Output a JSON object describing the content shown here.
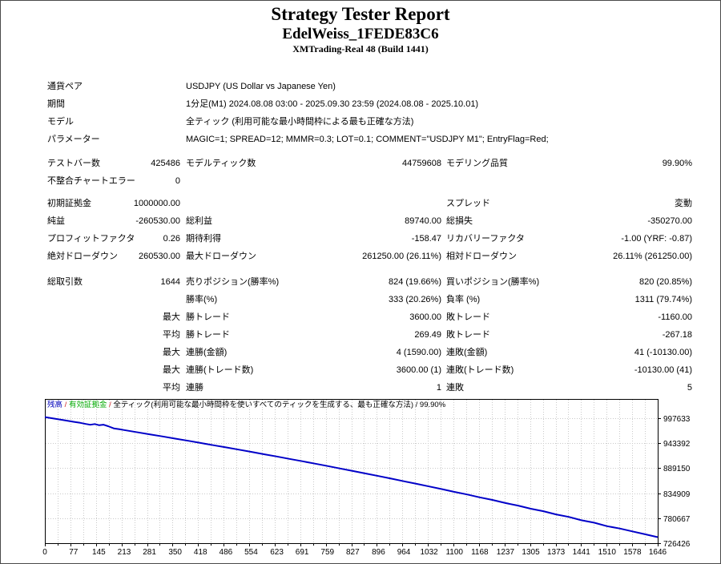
{
  "header": {
    "title": "Strategy Tester Report",
    "ea_name": "EdelWeiss_1FEDE83C6",
    "server": "XMTrading-Real 48 (Build 1441)"
  },
  "report": {
    "sections": [
      {
        "type": "info",
        "rows": [
          [
            "通貨ペア",
            "USDJPY (US Dollar vs Japanese Yen)"
          ],
          [
            "期間",
            "1分足(M1) 2024.08.08 03:00 - 2025.09.30 23:59 (2024.08.08 - 2025.10.01)"
          ],
          [
            "モデル",
            "全ティック (利用可能な最小時間枠による最も正確な方法)"
          ],
          [
            "パラメーター",
            "MAGIC=1; SPREAD=12; MMMR=0.3; LOT=0.1; COMMENT=\"USDJPY M1\"; EntryFlag=Red;"
          ]
        ]
      },
      {
        "type": "stats",
        "rows": [
          [
            "テストバー数",
            "425486",
            "モデルティック数",
            "44759608",
            "モデリング品質",
            "99.90%"
          ],
          [
            "不整合チャートエラー",
            "0",
            "",
            "",
            "",
            ""
          ]
        ]
      },
      {
        "type": "stats",
        "rows": [
          [
            "初期証拠金",
            "1000000.00",
            "",
            "",
            "スプレッド",
            "変動"
          ],
          [
            "純益",
            "-260530.00",
            "総利益",
            "89740.00",
            "総損失",
            "-350270.00"
          ],
          [
            "プロフィットファクタ",
            "0.26",
            "期待利得",
            "-158.47",
            "リカバリーファクタ",
            "-1.00 (YRF: -0.87)"
          ],
          [
            "絶対ドローダウン",
            "260530.00",
            "最大ドローダウン",
            "261250.00 (26.11%)",
            "相対ドローダウン",
            "26.11% (261250.00)"
          ]
        ]
      },
      {
        "type": "stats",
        "rows": [
          [
            "総取引数",
            "1644",
            "売りポジション(勝率%)",
            "824 (19.66%)",
            "買いポジション(勝率%)",
            "820 (20.85%)"
          ],
          [
            "",
            "",
            "勝率(%)",
            "333 (20.26%)",
            "負率 (%)",
            "1311 (79.74%)"
          ],
          [
            "",
            "最大",
            "勝トレード",
            "3600.00",
            "敗トレード",
            "-1160.00"
          ],
          [
            "",
            "平均",
            "勝トレード",
            "269.49",
            "敗トレード",
            "-267.18"
          ],
          [
            "",
            "最大",
            "連勝(金額)",
            "4 (1590.00)",
            "連敗(金額)",
            "41 (-10130.00)"
          ],
          [
            "",
            "最大",
            "連勝(トレード数)",
            "3600.00 (1)",
            "連敗(トレード数)",
            "-10130.00 (41)"
          ],
          [
            "",
            "平均",
            "連勝",
            "1",
            "連敗",
            "5"
          ]
        ]
      }
    ]
  },
  "chart_data": {
    "type": "line",
    "legend_segments": [
      {
        "text": "残高",
        "color": "#0000BB"
      },
      {
        "text": " / ",
        "color": "#CC2222"
      },
      {
        "text": "有効証拠金",
        "color": "#00AA00"
      },
      {
        "text": " / ",
        "color": "#CC2222"
      },
      {
        "text": "全ティック(利用可能な最小時間枠を使いすべてのティックを生成する、最も正確な方法) / 99.90%",
        "color": "#000000"
      }
    ],
    "xlabel": "",
    "ylabel": "",
    "x_ticks": [
      0,
      77,
      145,
      213,
      281,
      350,
      418,
      486,
      554,
      623,
      691,
      759,
      827,
      896,
      964,
      1032,
      1100,
      1168,
      1237,
      1305,
      1373,
      1441,
      1510,
      1578,
      1646
    ],
    "y_ticks": [
      997633,
      943392,
      889150,
      834909,
      780667,
      726426
    ],
    "x_range": [
      0,
      1646
    ],
    "y_range": [
      726426,
      1039355
    ],
    "grid": true,
    "line_color": "#0000C8",
    "grid_color": "#C9C9C9",
    "series": [
      {
        "name": "残高",
        "points": [
          [
            0,
            1000000
          ],
          [
            25,
            996710
          ],
          [
            50,
            993420
          ],
          [
            77,
            989860
          ],
          [
            95,
            987490
          ],
          [
            110,
            985100
          ],
          [
            122,
            983300
          ],
          [
            134,
            984900
          ],
          [
            146,
            982300
          ],
          [
            157,
            983500
          ],
          [
            170,
            980300
          ],
          [
            185,
            975560
          ],
          [
            200,
            973560
          ],
          [
            213,
            971880
          ],
          [
            245,
            967530
          ],
          [
            281,
            962720
          ],
          [
            315,
            958100
          ],
          [
            350,
            953370
          ],
          [
            385,
            948570
          ],
          [
            418,
            943960
          ],
          [
            452,
            939080
          ],
          [
            486,
            934370
          ],
          [
            520,
            929410
          ],
          [
            554,
            924610
          ],
          [
            590,
            919240
          ],
          [
            623,
            914500
          ],
          [
            657,
            909300
          ],
          [
            691,
            904310
          ],
          [
            725,
            898990
          ],
          [
            759,
            893830
          ],
          [
            793,
            888450
          ],
          [
            827,
            883080
          ],
          [
            861,
            877670
          ],
          [
            896,
            872040
          ],
          [
            930,
            866490
          ],
          [
            964,
            860870
          ],
          [
            998,
            855240
          ],
          [
            1032,
            849450
          ],
          [
            1066,
            843790
          ],
          [
            1100,
            837770
          ],
          [
            1134,
            832120
          ],
          [
            1168,
            825860
          ],
          [
            1202,
            820260
          ],
          [
            1237,
            813550
          ],
          [
            1271,
            807980
          ],
          [
            1305,
            801240
          ],
          [
            1339,
            795740
          ],
          [
            1373,
            788770
          ],
          [
            1407,
            783430
          ],
          [
            1441,
            776170
          ],
          [
            1475,
            770990
          ],
          [
            1510,
            763310
          ],
          [
            1544,
            758290
          ],
          [
            1578,
            752020
          ],
          [
            1612,
            745730
          ],
          [
            1646,
            739470
          ]
        ]
      }
    ]
  }
}
